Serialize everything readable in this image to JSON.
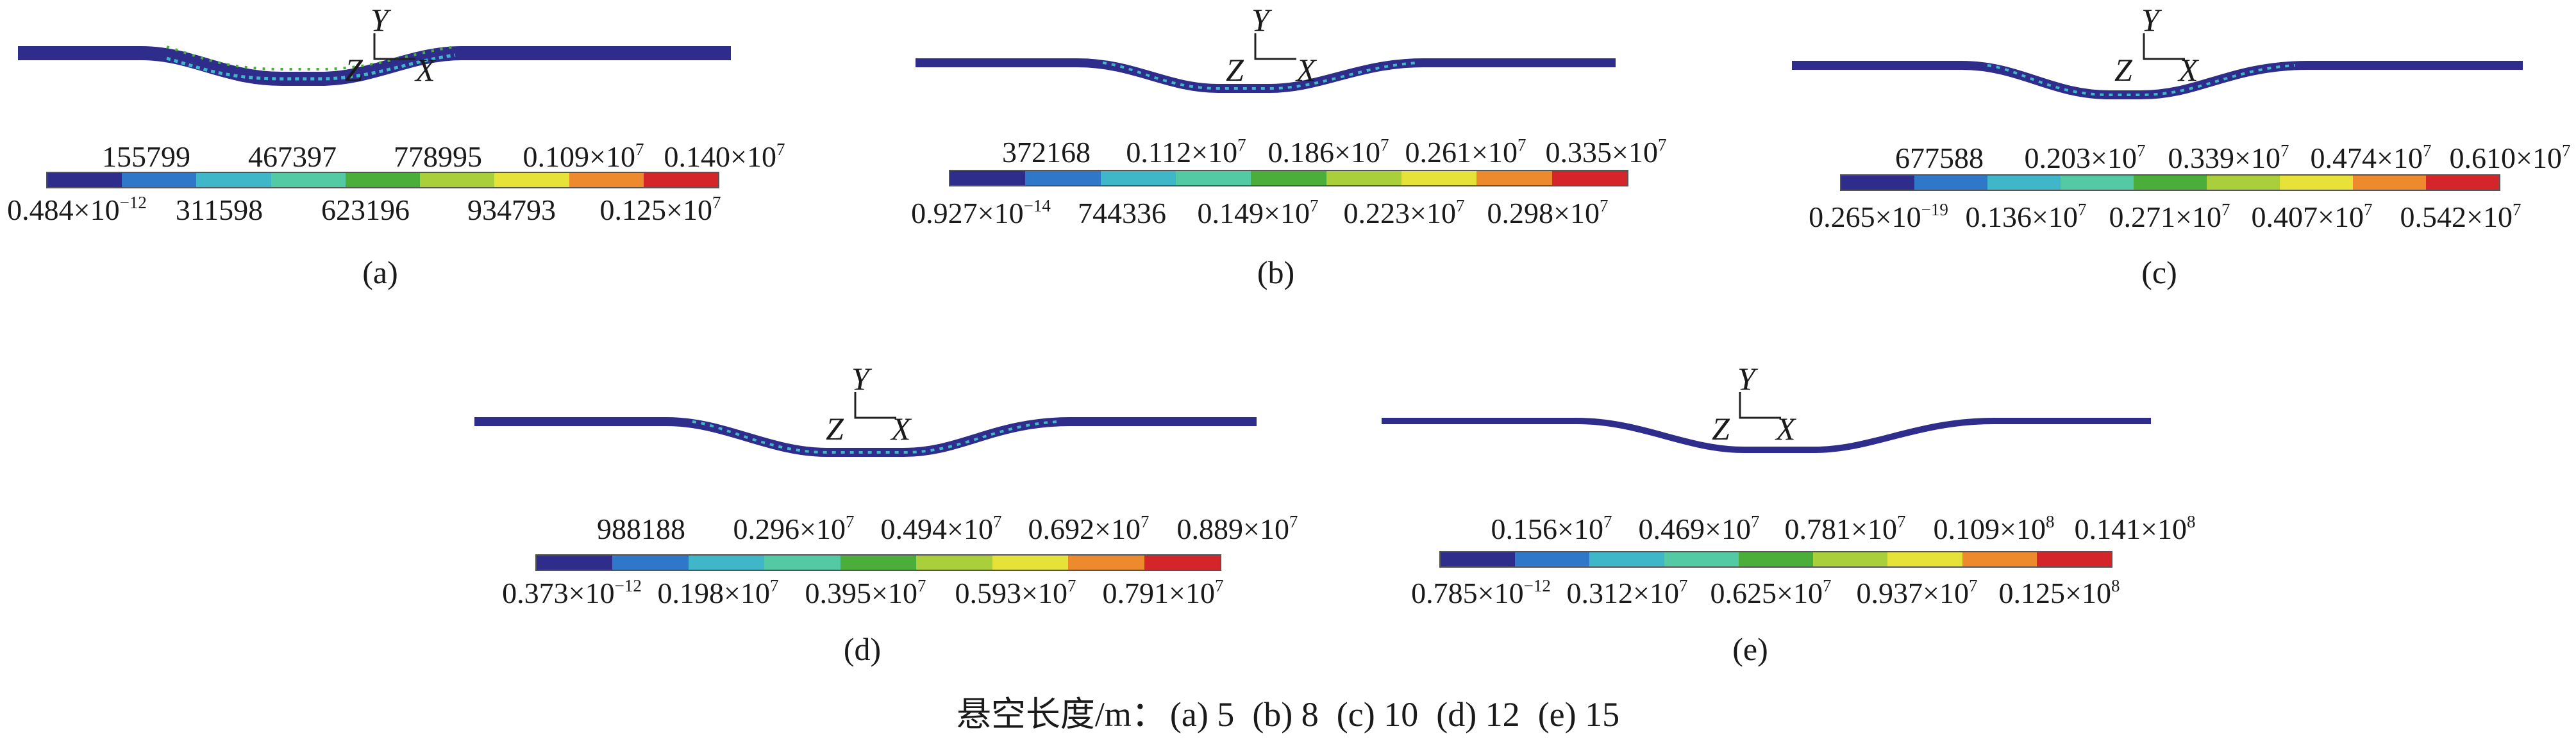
{
  "colors": [
    "#2e2d8c",
    "#2f77c9",
    "#3fb7c9",
    "#53c9a4",
    "#4cae3a",
    "#a9cf3b",
    "#e7e23a",
    "#ee8a2e",
    "#d4262a"
  ],
  "icon_names": [
    "pipe-deformation-plot",
    "coordinate-axes-icon",
    "colorbar-legend"
  ],
  "panels": [
    {
      "id": "a",
      "sub_label": "(a)",
      "axis": {
        "y": "Y",
        "z": "Z",
        "x": "X"
      },
      "top_labels": [
        {
          "base": "155799",
          "exp": ""
        },
        {
          "base": "467397",
          "exp": ""
        },
        {
          "base": "778995",
          "exp": ""
        },
        {
          "base": "0.109×10",
          "exp": "7"
        },
        {
          "base": "0.140×10",
          "exp": "7"
        }
      ],
      "bottom_labels": [
        {
          "base": "0.484×10",
          "exp": "−12"
        },
        {
          "base": "311598",
          "exp": ""
        },
        {
          "base": "623196",
          "exp": ""
        },
        {
          "base": "934793",
          "exp": ""
        },
        {
          "base": "0.125×10",
          "exp": "7"
        }
      ]
    },
    {
      "id": "b",
      "sub_label": "(b)",
      "axis": {
        "y": "Y",
        "z": "Z",
        "x": "X"
      },
      "top_labels": [
        {
          "base": "372168",
          "exp": ""
        },
        {
          "base": "0.112×10",
          "exp": "7"
        },
        {
          "base": "0.186×10",
          "exp": "7"
        },
        {
          "base": "0.261×10",
          "exp": "7"
        },
        {
          "base": "0.335×10",
          "exp": "7"
        }
      ],
      "bottom_labels": [
        {
          "base": "0.927×10",
          "exp": "−14"
        },
        {
          "base": "744336",
          "exp": ""
        },
        {
          "base": "0.149×10",
          "exp": "7"
        },
        {
          "base": "0.223×10",
          "exp": "7"
        },
        {
          "base": "0.298×10",
          "exp": "7"
        }
      ]
    },
    {
      "id": "c",
      "sub_label": "(c)",
      "axis": {
        "y": "Y",
        "z": "Z",
        "x": "X"
      },
      "top_labels": [
        {
          "base": "677588",
          "exp": ""
        },
        {
          "base": "0.203×10",
          "exp": "7"
        },
        {
          "base": "0.339×10",
          "exp": "7"
        },
        {
          "base": "0.474×10",
          "exp": "7"
        },
        {
          "base": "0.610×10",
          "exp": "7"
        }
      ],
      "bottom_labels": [
        {
          "base": "0.265×10",
          "exp": "−19"
        },
        {
          "base": "0.136×10",
          "exp": "7"
        },
        {
          "base": "0.271×10",
          "exp": "7"
        },
        {
          "base": "0.407×10",
          "exp": "7"
        },
        {
          "base": "0.542×10",
          "exp": "7"
        }
      ]
    },
    {
      "id": "d",
      "sub_label": "(d)",
      "axis": {
        "y": "Y",
        "z": "Z",
        "x": "X"
      },
      "top_labels": [
        {
          "base": "988188",
          "exp": ""
        },
        {
          "base": "0.296×10",
          "exp": "7"
        },
        {
          "base": "0.494×10",
          "exp": "7"
        },
        {
          "base": "0.692×10",
          "exp": "7"
        },
        {
          "base": "0.889×10",
          "exp": "7"
        }
      ],
      "bottom_labels": [
        {
          "base": "0.373×10",
          "exp": "−12"
        },
        {
          "base": "0.198×10",
          "exp": "7"
        },
        {
          "base": "0.395×10",
          "exp": "7"
        },
        {
          "base": "0.593×10",
          "exp": "7"
        },
        {
          "base": "0.791×10",
          "exp": "7"
        }
      ]
    },
    {
      "id": "e",
      "sub_label": "(e)",
      "axis": {
        "y": "Y",
        "z": "Z",
        "x": "X"
      },
      "top_labels": [
        {
          "base": "0.156×10",
          "exp": "7"
        },
        {
          "base": "0.469×10",
          "exp": "7"
        },
        {
          "base": "0.781×10",
          "exp": "7"
        },
        {
          "base": "0.109×10",
          "exp": "8"
        },
        {
          "base": "0.141×10",
          "exp": "8"
        }
      ],
      "bottom_labels": [
        {
          "base": "0.785×10",
          "exp": "−12"
        },
        {
          "base": "0.312×10",
          "exp": "7"
        },
        {
          "base": "0.625×10",
          "exp": "7"
        },
        {
          "base": "0.937×10",
          "exp": "7"
        },
        {
          "base": "0.125×10",
          "exp": "8"
        }
      ]
    }
  ],
  "caption": {
    "prefix": "悬空长度/m：",
    "items": [
      "(a) 5",
      "(b) 8",
      "(c) 10",
      "(d) 12",
      "(e) 15"
    ]
  }
}
